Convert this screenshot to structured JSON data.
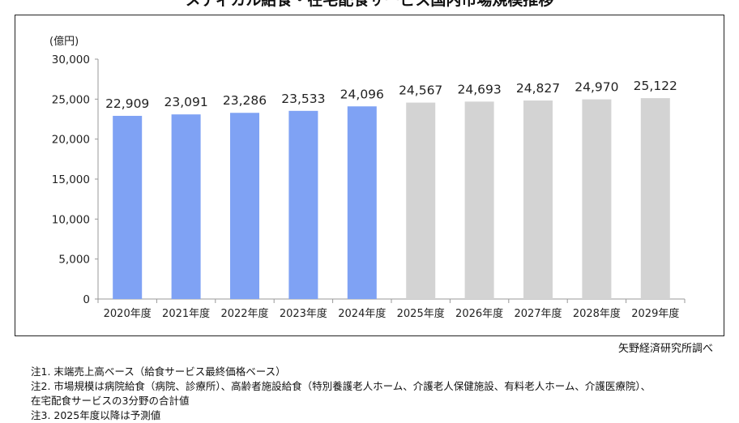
{
  "title": "メディカル給食・在宅配食サービス国内市場規模推移",
  "source": "矢野経済研究所調べ",
  "notes": [
    "注1. 末端売上高ベース（給食サービス最終価格ベース）",
    "注2. 市場規模は病院給食（病院、診療所）、高齢者施設給食（特別養護老人ホーム、介護老人保健施設、有料老人ホーム、介護医療院）、",
    "在宅配食サービスの3分野の合計値",
    "注3. 2025年度以降は予測値"
  ],
  "colors": {
    "actual": "#7fa2f4",
    "forecast": "#d3d3d3",
    "axis": "#999999"
  },
  "chart_data": {
    "type": "bar",
    "unit_label": "(億円)",
    "categories": [
      "2020年度",
      "2021年度",
      "2022年度",
      "2023年度",
      "2024年度",
      "2025年度",
      "2026年度",
      "2027年度",
      "2028年度",
      "2029年度"
    ],
    "values": [
      22909,
      23091,
      23286,
      23533,
      24096,
      24567,
      24693,
      24827,
      24970,
      25122
    ],
    "value_labels": [
      "22,909",
      "23,091",
      "23,286",
      "23,533",
      "24,096",
      "24,567",
      "24,693",
      "24,827",
      "24,970",
      "25,122"
    ],
    "forecast_from_index": 5,
    "yticks": [
      0,
      5000,
      10000,
      15000,
      20000,
      25000,
      30000
    ],
    "ytick_labels": [
      "0",
      "5,000",
      "10,000",
      "15,000",
      "20,000",
      "25,000",
      "30,000"
    ],
    "ylim": [
      0,
      30000
    ],
    "grid": false,
    "legend": "none"
  }
}
